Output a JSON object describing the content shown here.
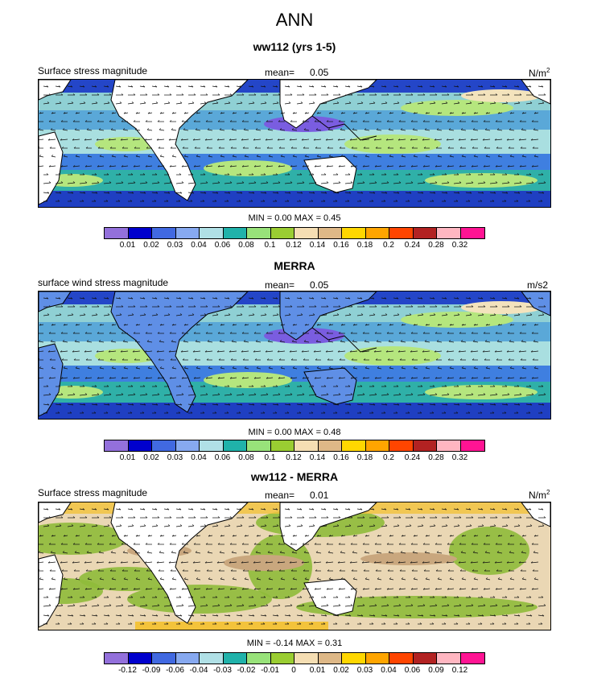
{
  "title": "ANN",
  "panels": [
    {
      "title": "ww112 (yrs 1-5)",
      "left_label": "Surface stress magnitude",
      "mean_label": "mean=",
      "mean_value": "0.05",
      "units_base": "N/m",
      "units_sup": "2",
      "minmax": "MIN =  0.00 MAX =  0.45",
      "colorbar": {
        "colors": [
          "#9370db",
          "#0000cd",
          "#4169e1",
          "#87a9f0",
          "#b0e0e6",
          "#20b2aa",
          "#98e27a",
          "#9acd32",
          "#f5deb3",
          "#deb887",
          "#ffd700",
          "#ffa500",
          "#ff4500",
          "#b22222",
          "#ffb6c1",
          "#ff1493"
        ],
        "labels": [
          "0.01",
          "0.02",
          "0.03",
          "0.04",
          "0.06",
          "0.08",
          "0.1",
          "0.12",
          "0.14",
          "0.16",
          "0.18",
          "0.2",
          "0.24",
          "0.28",
          "0.32"
        ]
      }
    },
    {
      "title": "MERRA",
      "left_label": "surface wind stress magnitude",
      "mean_label": "mean=",
      "mean_value": "0.05",
      "units_base": "m/s2",
      "units_sup": "",
      "minmax": "MIN =  0.00 MAX =  0.48",
      "colorbar": {
        "colors": [
          "#9370db",
          "#0000cd",
          "#4169e1",
          "#87a9f0",
          "#b0e0e6",
          "#20b2aa",
          "#98e27a",
          "#9acd32",
          "#f5deb3",
          "#deb887",
          "#ffd700",
          "#ffa500",
          "#ff4500",
          "#b22222",
          "#ffb6c1",
          "#ff1493"
        ],
        "labels": [
          "0.01",
          "0.02",
          "0.03",
          "0.04",
          "0.06",
          "0.08",
          "0.1",
          "0.12",
          "0.14",
          "0.16",
          "0.18",
          "0.2",
          "0.24",
          "0.28",
          "0.32"
        ]
      }
    },
    {
      "title": "ww112 - MERRA",
      "left_label": "Surface stress magnitude",
      "mean_label": "mean=",
      "mean_value": "0.01",
      "units_base": "N/m",
      "units_sup": "2",
      "minmax": "MIN =  -0.14 MAX =  0.31",
      "colorbar": {
        "colors": [
          "#9370db",
          "#0000cd",
          "#4169e1",
          "#87a9f0",
          "#b0e0e6",
          "#20b2aa",
          "#98e27a",
          "#9acd32",
          "#f5deb3",
          "#deb887",
          "#ffd700",
          "#ffa500",
          "#ff4500",
          "#b22222",
          "#ffb6c1",
          "#ff1493"
        ],
        "labels": [
          "-0.12",
          "-0.09",
          "-0.06",
          "-0.04",
          "-0.03",
          "-0.02",
          "-0.01",
          "0",
          "0.01",
          "0.02",
          "0.03",
          "0.04",
          "0.06",
          "0.09",
          "0.12"
        ]
      }
    }
  ]
}
